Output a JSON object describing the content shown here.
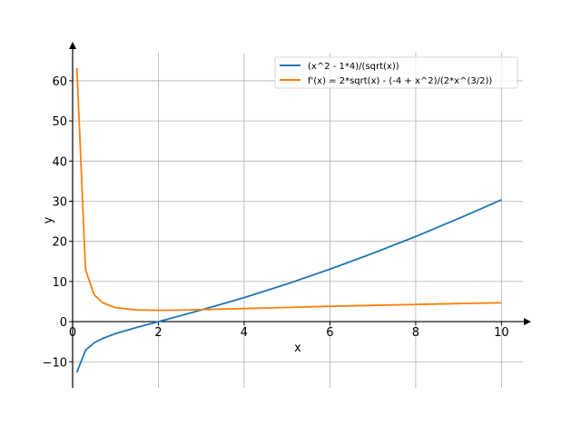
{
  "chart_data": {
    "type": "line",
    "xlabel": "x",
    "ylabel": "y",
    "xlim": [
      0,
      10.5
    ],
    "ylim": [
      -16.5,
      67
    ],
    "grid": true,
    "legend_position": "top-right",
    "x_ticks": [
      0,
      2,
      4,
      6,
      8,
      10
    ],
    "y_ticks": [
      -10,
      0,
      10,
      20,
      30,
      40,
      50,
      60
    ],
    "series": [
      {
        "name": "(x^2 - 1*4)/(sqrt(x))",
        "color": "#1f77b4",
        "x": [
          0.1,
          0.3,
          0.5,
          0.7,
          1.0,
          1.5,
          2.0,
          2.5,
          3.0,
          4.0,
          5.0,
          6.0,
          7.0,
          8.0,
          9.0,
          10.0
        ],
        "y": [
          -12.6,
          -7.14,
          -5.3,
          -4.19,
          -3.0,
          -1.43,
          0.0,
          1.42,
          2.89,
          6.0,
          9.39,
          13.06,
          17.01,
          21.21,
          25.67,
          30.36
        ]
      },
      {
        "name": "f'(x) = 2*sqrt(x) - (-4 + x^2)/(2*x^(3/2))",
        "color": "#ff7f0e",
        "x": [
          0.1,
          0.3,
          0.5,
          0.7,
          1.0,
          1.5,
          2.0,
          2.5,
          3.0,
          4.0,
          5.0,
          6.0,
          7.0,
          8.0,
          9.0,
          10.0
        ],
        "y": [
          63.2,
          13.0,
          6.72,
          4.67,
          3.5,
          2.92,
          2.83,
          2.88,
          2.98,
          3.25,
          3.53,
          3.81,
          4.05,
          4.28,
          4.5,
          4.7
        ]
      }
    ]
  }
}
